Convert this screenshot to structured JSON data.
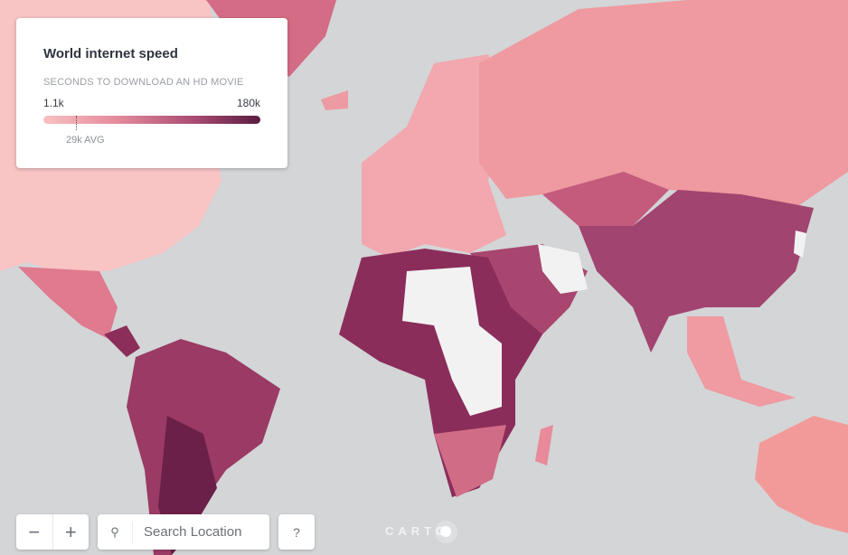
{
  "legend": {
    "title": "World internet speed",
    "subtitle": "SECONDS TO DOWNLOAD AN HD MOVIE",
    "min_label": "1.1k",
    "max_label": "180k",
    "avg_label": "29k AVG",
    "ramp_colors": [
      "#f8c1c1",
      "#e4899b",
      "#a84b72",
      "#5a1c42"
    ],
    "no_data_color": "#f2f2f2"
  },
  "controls": {
    "zoom_out": "−",
    "zoom_in": "+",
    "search_icon": "search-icon",
    "search_placeholder": "Search Location",
    "help": "?"
  },
  "attribution": "CARTO",
  "map": {
    "background_color": "#d3d5d7"
  }
}
